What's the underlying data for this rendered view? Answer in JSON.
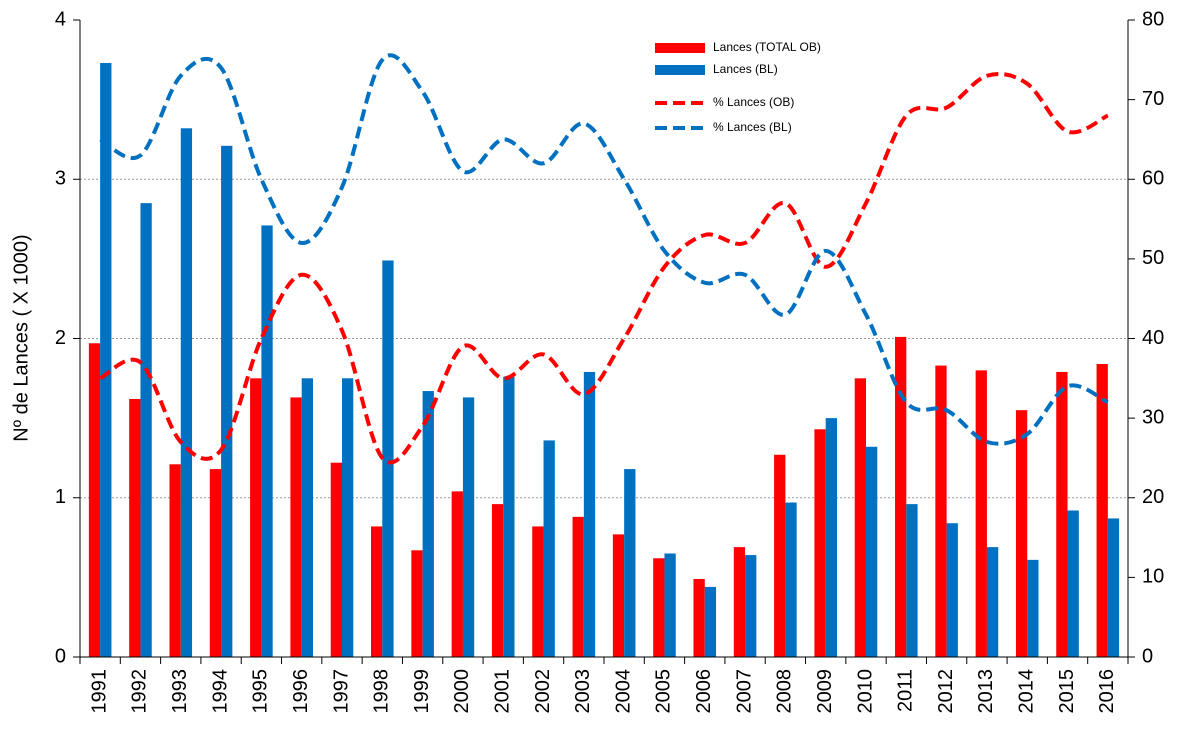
{
  "chart_data": {
    "type": "bar",
    "y_label": "Nº de Lances ( X 1000)",
    "categories": [
      "1991",
      "1992",
      "1993",
      "1994",
      "1995",
      "1996",
      "1997",
      "1998",
      "1999",
      "2000",
      "2001",
      "2002",
      "2003",
      "2004",
      "2005",
      "2006",
      "2007",
      "2008",
      "2009",
      "2010",
      "2011",
      "2012",
      "2013",
      "2014",
      "2015",
      "2016"
    ],
    "series": [
      {
        "name": "Lances (TOTAL OB)",
        "type": "bar",
        "axis": "y",
        "color": "#ff0000",
        "values": [
          1.97,
          1.62,
          1.21,
          1.18,
          1.75,
          1.63,
          1.22,
          0.82,
          0.67,
          1.04,
          0.96,
          0.82,
          0.88,
          0.77,
          0.62,
          0.49,
          0.69,
          1.27,
          1.43,
          1.75,
          2.01,
          1.83,
          1.8,
          1.55,
          1.79,
          1.84
        ]
      },
      {
        "name": "Lances (BL)",
        "type": "bar",
        "axis": "y",
        "color": "#0070c0",
        "values": [
          3.73,
          2.85,
          3.32,
          3.21,
          2.71,
          1.75,
          1.75,
          2.49,
          1.67,
          1.63,
          1.76,
          1.36,
          1.79,
          1.18,
          0.65,
          0.44,
          0.64,
          0.97,
          1.5,
          1.32,
          0.96,
          0.84,
          0.69,
          0.61,
          0.92,
          0.87
        ]
      },
      {
        "name": "% Lances (OB)",
        "type": "line",
        "axis": "y2",
        "color": "#ff0000",
        "dashed": true,
        "values": [
          35,
          37,
          27,
          26,
          40,
          48,
          41,
          25,
          29,
          39,
          35,
          38,
          33,
          40,
          49,
          53,
          52,
          57,
          49,
          57,
          68,
          69,
          73,
          72,
          66,
          68
        ]
      },
      {
        "name": "% Lances (BL)",
        "type": "line",
        "axis": "y2",
        "color": "#0070c0",
        "dashed": true,
        "values": [
          65,
          63,
          73,
          74,
          60,
          52,
          59,
          75,
          71,
          61,
          65,
          62,
          67,
          60,
          51,
          47,
          48,
          43,
          51,
          43,
          32,
          31,
          27,
          28,
          34,
          32
        ]
      }
    ],
    "ylim": [
      0,
      4
    ],
    "yticks": [
      0,
      1,
      2,
      3,
      4
    ],
    "y2lim": [
      0,
      80
    ],
    "y2ticks": [
      0,
      10,
      20,
      30,
      40,
      50,
      60,
      70,
      80
    ],
    "grid": true
  }
}
